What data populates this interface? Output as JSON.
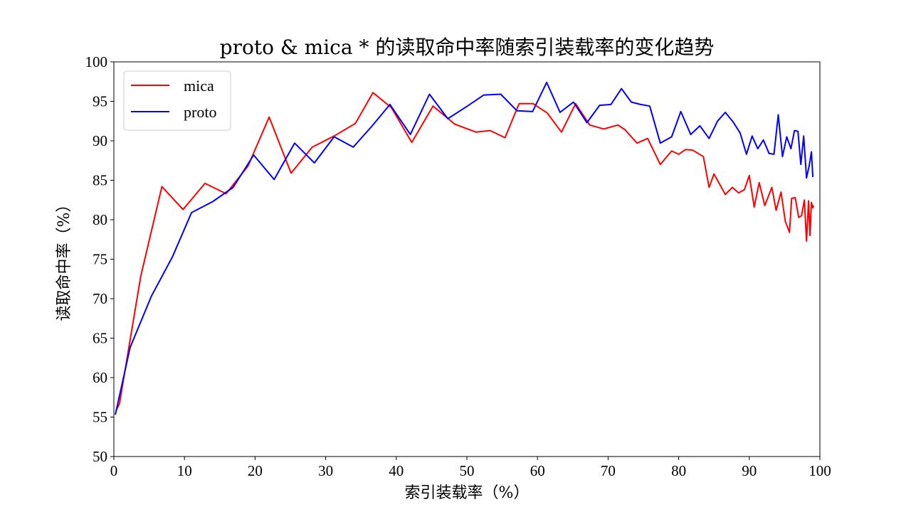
{
  "chart_data": {
    "type": "line",
    "title": "proto & mica * 的读取命中率随索引装载率的变化趋势",
    "xlabel": "索引装载率（%）",
    "ylabel": "读取命中率（%）",
    "xlim": [
      0,
      100
    ],
    "ylim": [
      50,
      100
    ],
    "x_ticks": [
      0,
      10,
      20,
      30,
      40,
      50,
      60,
      70,
      80,
      90,
      100
    ],
    "y_ticks": [
      50,
      55,
      60,
      65,
      70,
      75,
      80,
      85,
      90,
      95,
      100
    ],
    "grid": false,
    "legend_position": "upper-left",
    "series": [
      {
        "name": "mica",
        "color": "#ff0000",
        "x": [
          0.3,
          0.8,
          3.8,
          6.8,
          9.8,
          12.9,
          15.9,
          19.0,
          22.0,
          25.1,
          28.1,
          31.2,
          34.2,
          36.7,
          39.3,
          42.2,
          45.2,
          48.3,
          51.3,
          53.3,
          55.4,
          57.4,
          59.4,
          61.4,
          63.4,
          65.4,
          67.4,
          69.4,
          71.4,
          72.4,
          74.1,
          75.6,
          77.4,
          79.0,
          80.0,
          81.0,
          82.0,
          83.5,
          84.3,
          85.0,
          86.6,
          87.6,
          88.5,
          89.3,
          90.0,
          90.7,
          91.4,
          92.2,
          93.2,
          93.8,
          94.5,
          95.1,
          95.7,
          96.0,
          96.5,
          97.0,
          97.4,
          97.8,
          98.1,
          98.4,
          98.6,
          98.8,
          99.0,
          99.1
        ],
        "y": [
          55.8,
          56.7,
          72.8,
          84.2,
          81.3,
          84.6,
          83.3,
          86.8,
          93.0,
          85.9,
          89.2,
          90.6,
          92.2,
          96.1,
          94.2,
          89.8,
          94.4,
          92.1,
          91.1,
          91.3,
          90.4,
          94.7,
          94.7,
          93.5,
          91.1,
          94.7,
          92.0,
          91.5,
          92.0,
          91.4,
          89.7,
          90.3,
          87.0,
          88.7,
          88.3,
          88.9,
          88.8,
          88.0,
          84.1,
          85.8,
          83.2,
          84.1,
          83.4,
          83.8,
          85.6,
          81.6,
          84.7,
          81.8,
          84.1,
          81.2,
          83.5,
          79.8,
          78.4,
          82.7,
          82.8,
          80.3,
          80.5,
          82.5,
          77.3,
          82.4,
          78.0,
          82.2,
          81.5,
          81.8
        ]
      },
      {
        "name": "proto",
        "color": "#0000ff",
        "x": [
          0.2,
          2.3,
          5.3,
          8.3,
          11.0,
          14.0,
          16.9,
          19.8,
          22.7,
          25.6,
          28.4,
          31.2,
          33.9,
          36.5,
          39.1,
          42.0,
          44.7,
          47.3,
          49.9,
          52.4,
          54.8,
          57.1,
          59.3,
          61.3,
          63.2,
          65.1,
          67.0,
          68.8,
          70.4,
          71.9,
          73.3,
          74.6,
          75.9,
          77.4,
          79.0,
          80.3,
          81.7,
          83.0,
          84.3,
          85.5,
          86.6,
          87.7,
          88.7,
          89.6,
          90.4,
          91.2,
          92.0,
          92.8,
          93.5,
          94.1,
          94.7,
          95.3,
          95.9,
          96.4,
          96.9,
          97.3,
          97.7,
          98.1,
          98.5,
          98.8,
          99.0
        ],
        "y": [
          55.3,
          63.8,
          70.3,
          75.3,
          80.9,
          82.3,
          84.1,
          88.2,
          85.1,
          89.7,
          87.2,
          90.5,
          89.2,
          91.8,
          94.6,
          90.8,
          95.9,
          92.8,
          94.3,
          95.8,
          95.9,
          93.8,
          93.7,
          97.4,
          93.6,
          94.9,
          92.3,
          94.5,
          94.6,
          96.6,
          94.9,
          94.6,
          94.4,
          89.7,
          90.5,
          93.7,
          90.8,
          91.9,
          90.3,
          92.5,
          93.6,
          92.4,
          91.0,
          88.3,
          90.6,
          89.0,
          90.1,
          88.4,
          88.3,
          93.3,
          88.0,
          90.5,
          89.0,
          91.3,
          91.2,
          87.0,
          90.6,
          85.3,
          86.9,
          88.6,
          85.4
        ]
      }
    ]
  }
}
